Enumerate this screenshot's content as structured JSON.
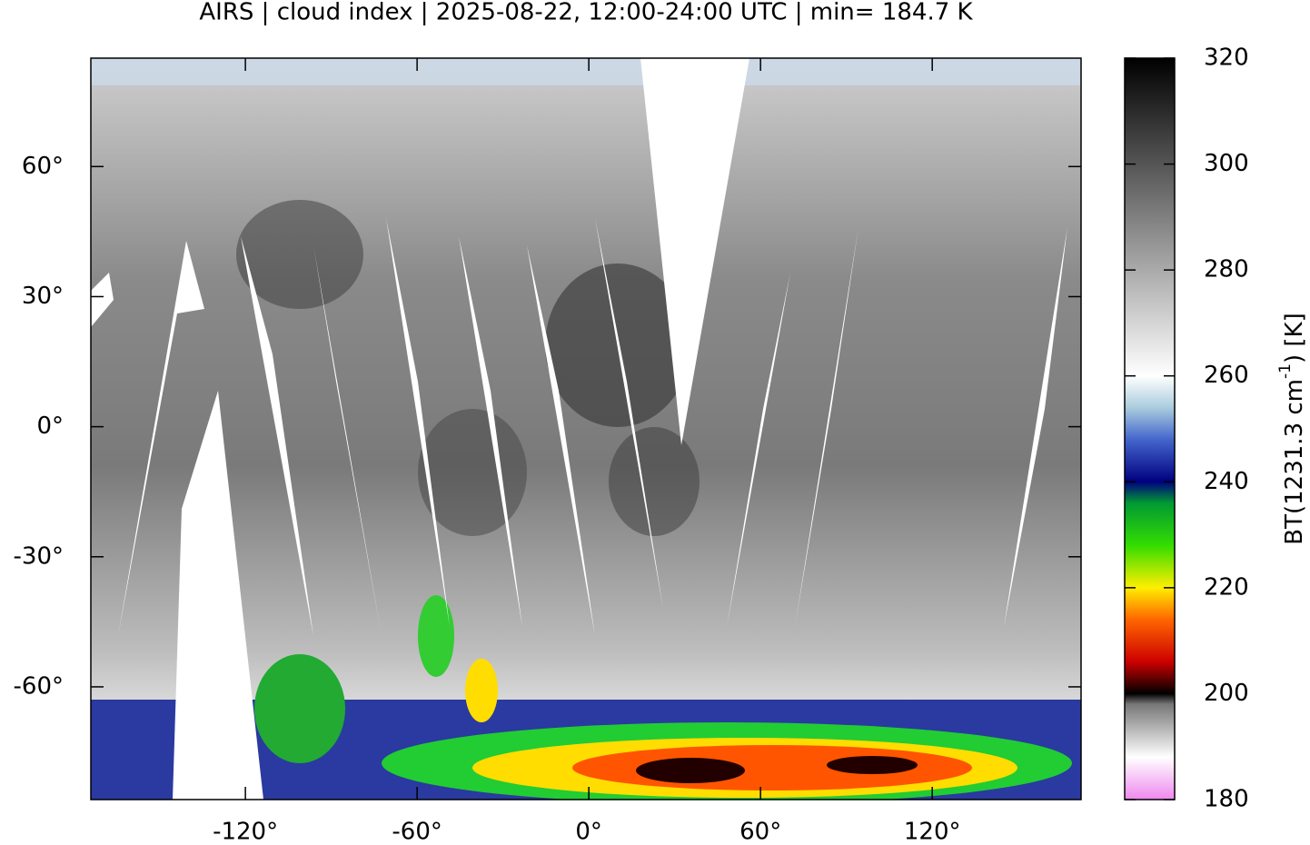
{
  "chart_data": {
    "type": "map",
    "title": "AIRS | cloud index | 2025-08-22, 12:00-24:00 UTC | min= 184.7 K",
    "xlim": [
      -174,
      172
    ],
    "ylim": [
      -86,
      85
    ],
    "xticks": [
      {
        "value": -120,
        "label": "-120°"
      },
      {
        "value": -60,
        "label": "-60°"
      },
      {
        "value": 0,
        "label": "0°"
      },
      {
        "value": 60,
        "label": "60°"
      },
      {
        "value": 120,
        "label": "120°"
      }
    ],
    "yticks": [
      {
        "value": 60,
        "label": "60°"
      },
      {
        "value": 30,
        "label": "30°"
      },
      {
        "value": 0,
        "label": "0°"
      },
      {
        "value": -30,
        "label": "-30°"
      },
      {
        "value": -60,
        "label": "-60°"
      }
    ],
    "colorbar": {
      "label": {
        "text": "BT(1231.3 cm",
        "superscript": "-1",
        "suffix": ") [K]"
      },
      "lim": [
        180,
        320
      ],
      "ticks": [
        180,
        200,
        220,
        240,
        260,
        280,
        300,
        320
      ],
      "colormap": [
        {
          "value": 180,
          "color": "#ee88ee"
        },
        {
          "value": 188,
          "color": "#ffffff"
        },
        {
          "value": 198,
          "color": "#777777"
        },
        {
          "value": 200,
          "color": "#000000"
        },
        {
          "value": 206,
          "color": "#cc0000"
        },
        {
          "value": 214,
          "color": "#ff6600"
        },
        {
          "value": 220,
          "color": "#ffee00"
        },
        {
          "value": 228,
          "color": "#33dd00"
        },
        {
          "value": 236,
          "color": "#009933"
        },
        {
          "value": 240,
          "color": "#000080"
        },
        {
          "value": 248,
          "color": "#4466cc"
        },
        {
          "value": 254,
          "color": "#aaccdd"
        },
        {
          "value": 260,
          "color": "#ffffff"
        },
        {
          "value": 320,
          "color": "#000000"
        }
      ]
    }
  }
}
